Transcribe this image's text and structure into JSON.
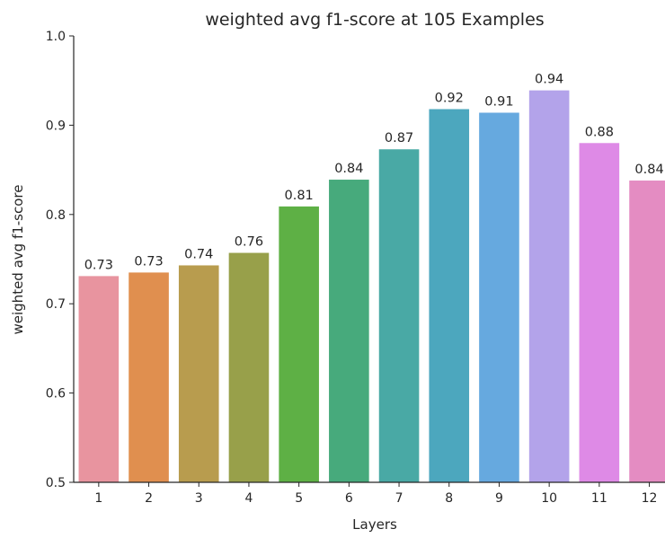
{
  "chart_data": {
    "type": "bar",
    "title": "weighted avg f1-score at 105 Examples",
    "xlabel": "Layers",
    "ylabel": "weighted avg f1-score",
    "categories": [
      "1",
      "2",
      "3",
      "4",
      "5",
      "6",
      "7",
      "8",
      "9",
      "10",
      "11",
      "12"
    ],
    "values": [
      0.731,
      0.735,
      0.743,
      0.757,
      0.809,
      0.839,
      0.873,
      0.918,
      0.914,
      0.939,
      0.88,
      0.838
    ],
    "bar_labels": [
      "0.73",
      "0.73",
      "0.74",
      "0.76",
      "0.81",
      "0.84",
      "0.87",
      "0.92",
      "0.91",
      "0.94",
      "0.88",
      "0.84"
    ],
    "colors": [
      "#e8949f",
      "#e08f4f",
      "#b89c4e",
      "#98a04a",
      "#5eb045",
      "#47aa7c",
      "#49a9a5",
      "#4ca7be",
      "#66a9df",
      "#b3a3ea",
      "#de8ae6",
      "#e48cc2"
    ],
    "ylim": [
      0.5,
      1.0
    ],
    "yticks": [
      "0.5",
      "0.6",
      "0.7",
      "0.8",
      "0.9",
      "1.0"
    ],
    "ytick_values": [
      0.5,
      0.6,
      0.7,
      0.8,
      0.9,
      1.0
    ],
    "grid": false,
    "legend": "none"
  }
}
